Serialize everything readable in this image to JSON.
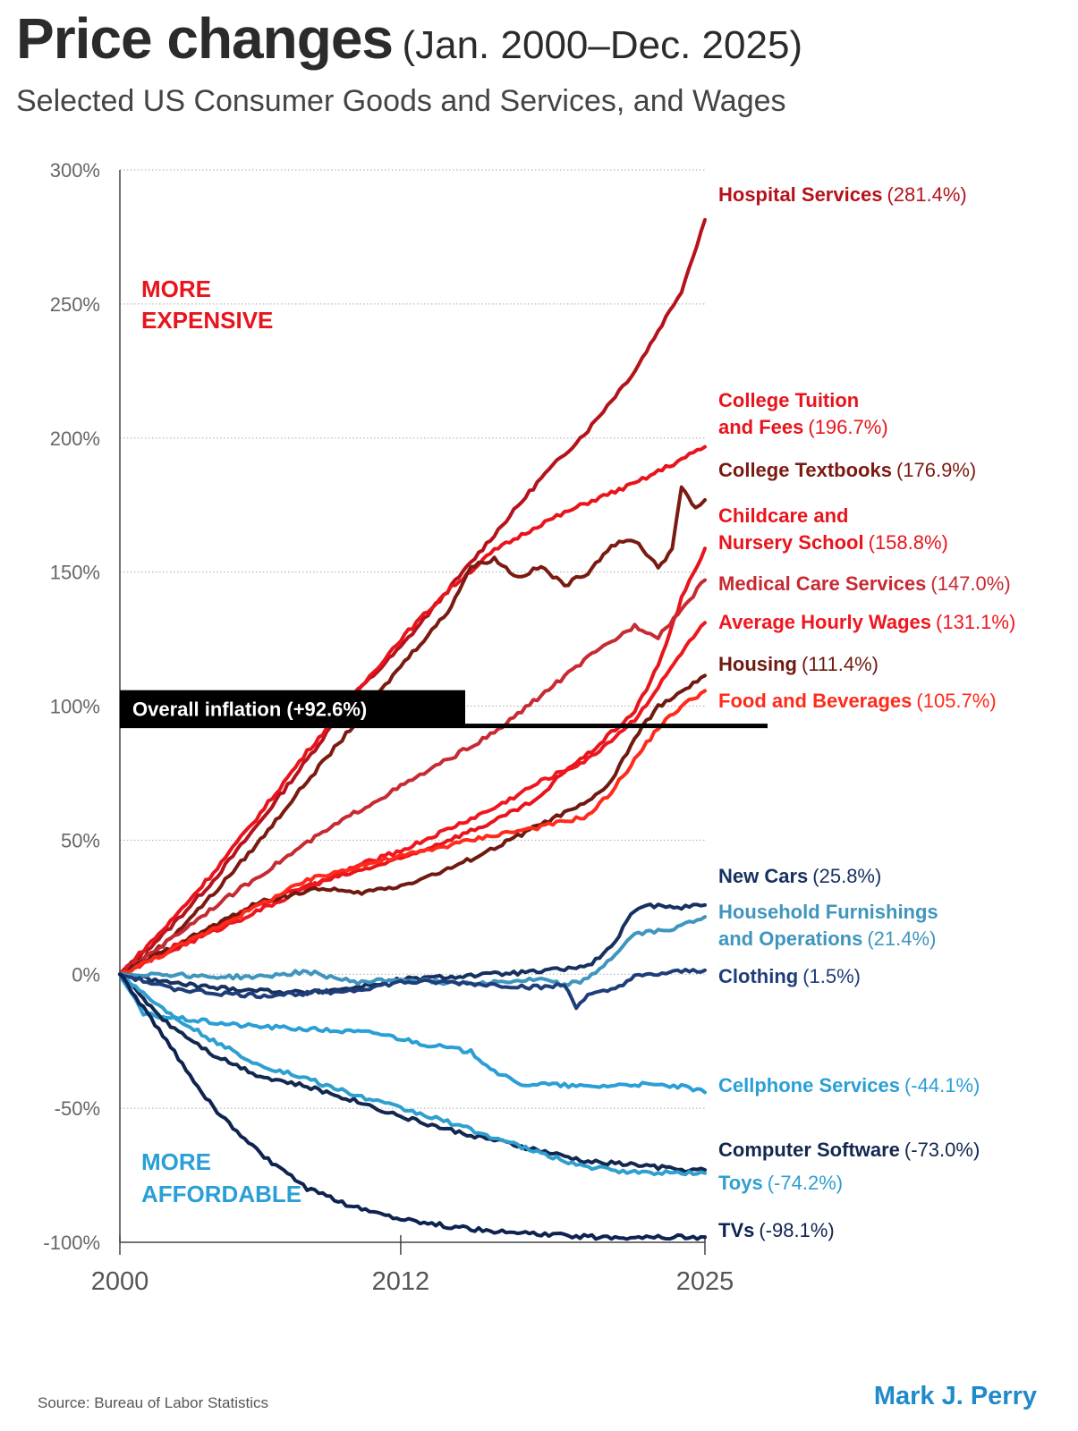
{
  "header": {
    "title": "Price changes",
    "title_range": "(Jan. 2000–Dec. 2025)",
    "subtitle": "Selected US Consumer Goods and Services, and Wages"
  },
  "footer": {
    "source": "Source:  Bureau of Labor Statistics",
    "author": "Mark J. Perry"
  },
  "chart_data": {
    "type": "line",
    "x_ticks": [
      "2000",
      "2012",
      "2025"
    ],
    "xlim": [
      2000,
      2025
    ],
    "ylim": [
      -100,
      300
    ],
    "y_ticks": [
      {
        "value": 300,
        "label": "300%"
      },
      {
        "value": 250,
        "label": "250%"
      },
      {
        "value": 200,
        "label": "200%"
      },
      {
        "value": 150,
        "label": "150%"
      },
      {
        "value": 100,
        "label": "100%"
      },
      {
        "value": 50,
        "label": "50%"
      },
      {
        "value": 0,
        "label": "0%"
      },
      {
        "value": -50,
        "label": "-50%"
      },
      {
        "value": -100,
        "label": "-100%"
      }
    ],
    "grid": "horizontal dotted",
    "region_labels": {
      "expensive": [
        "MORE",
        "EXPENSIVE"
      ],
      "affordable": [
        "MORE",
        "AFFORDABLE"
      ]
    },
    "reference_line": {
      "label": "Overall inflation (+92.6%)",
      "value": 92.6
    },
    "series": [
      {
        "name": "Hospital Services",
        "value_label": "(281.4%)",
        "color": "#b5121b",
        "label_lines": [
          "Hospital Services"
        ],
        "points": [
          [
            2000,
            0
          ],
          [
            2002,
            16
          ],
          [
            2004,
            35
          ],
          [
            2006,
            57
          ],
          [
            2008,
            80
          ],
          [
            2010,
            104
          ],
          [
            2012,
            122
          ],
          [
            2014,
            143
          ],
          [
            2016,
            164
          ],
          [
            2018,
            185
          ],
          [
            2020,
            203
          ],
          [
            2022,
            225
          ],
          [
            2024,
            255
          ],
          [
            2025,
            281.4
          ]
        ]
      },
      {
        "name": "College Tuition and Fees",
        "value_label": "(196.7%)",
        "color": "#e8141c",
        "label_lines": [
          "College Tuition",
          "and Fees"
        ],
        "points": [
          [
            2000,
            0
          ],
          [
            2002,
            18
          ],
          [
            2004,
            38
          ],
          [
            2006,
            60
          ],
          [
            2008,
            83
          ],
          [
            2010,
            104
          ],
          [
            2012,
            125
          ],
          [
            2014,
            143
          ],
          [
            2016,
            158
          ],
          [
            2018,
            168
          ],
          [
            2020,
            176
          ],
          [
            2022,
            183
          ],
          [
            2024,
            192
          ],
          [
            2025,
            196.7
          ]
        ]
      },
      {
        "name": "College Textbooks",
        "value_label": "(176.9%)",
        "color": "#7a1b12",
        "label_lines": [
          "College Textbooks"
        ],
        "points": [
          [
            2000,
            0
          ],
          [
            2002,
            12
          ],
          [
            2004,
            30
          ],
          [
            2006,
            50
          ],
          [
            2008,
            72
          ],
          [
            2010,
            93
          ],
          [
            2012,
            115
          ],
          [
            2014,
            135
          ],
          [
            2015,
            152
          ],
          [
            2016,
            155
          ],
          [
            2017,
            148
          ],
          [
            2018,
            152
          ],
          [
            2019,
            145
          ],
          [
            2020,
            150
          ],
          [
            2021,
            160
          ],
          [
            2022,
            162
          ],
          [
            2023,
            152
          ],
          [
            2023.6,
            158
          ],
          [
            2024,
            182
          ],
          [
            2024.6,
            174
          ],
          [
            2025,
            176.9
          ]
        ]
      },
      {
        "name": "Childcare and Nursery School",
        "value_label": "(158.8%)",
        "color": "#e8141c",
        "label_lines": [
          "Childcare and",
          "Nursery School"
        ],
        "points": [
          [
            2000,
            0
          ],
          [
            2002,
            9
          ],
          [
            2004,
            18
          ],
          [
            2006,
            26
          ],
          [
            2008,
            33
          ],
          [
            2010,
            38
          ],
          [
            2012,
            43
          ],
          [
            2014,
            50
          ],
          [
            2016,
            57
          ],
          [
            2018,
            66
          ],
          [
            2019,
            76
          ],
          [
            2020,
            82
          ],
          [
            2022,
            98
          ],
          [
            2023,
            115
          ],
          [
            2024,
            140
          ],
          [
            2025,
            158.8
          ]
        ]
      },
      {
        "name": "Medical Care Services",
        "value_label": "(147.0%)",
        "color": "#c62a33",
        "label_lines": [
          "Medical Care Services"
        ],
        "points": [
          [
            2000,
            0
          ],
          [
            2002,
            12
          ],
          [
            2004,
            25
          ],
          [
            2006,
            37
          ],
          [
            2008,
            49
          ],
          [
            2010,
            60
          ],
          [
            2012,
            70
          ],
          [
            2014,
            80
          ],
          [
            2016,
            90
          ],
          [
            2018,
            104
          ],
          [
            2020,
            118
          ],
          [
            2022,
            130
          ],
          [
            2023,
            126
          ],
          [
            2024,
            136
          ],
          [
            2025,
            147
          ]
        ]
      },
      {
        "name": "Average Hourly Wages",
        "value_label": "(131.1%)",
        "color": "#f0161f",
        "label_lines": [
          "Average Hourly Wages"
        ],
        "points": [
          [
            2000,
            0
          ],
          [
            2002,
            8
          ],
          [
            2004,
            16
          ],
          [
            2006,
            24
          ],
          [
            2008,
            32
          ],
          [
            2010,
            40
          ],
          [
            2012,
            46
          ],
          [
            2014,
            54
          ],
          [
            2016,
            62
          ],
          [
            2018,
            72
          ],
          [
            2020,
            80
          ],
          [
            2022,
            95
          ],
          [
            2023,
            107
          ],
          [
            2024,
            120
          ],
          [
            2025,
            131.1
          ]
        ]
      },
      {
        "name": "Housing",
        "value_label": "(111.4%)",
        "color": "#6e1a10",
        "label_lines": [
          "Housing"
        ],
        "points": [
          [
            2000,
            0
          ],
          [
            2002,
            9
          ],
          [
            2004,
            18
          ],
          [
            2006,
            27
          ],
          [
            2008,
            31
          ],
          [
            2009,
            32
          ],
          [
            2010,
            30
          ],
          [
            2012,
            33
          ],
          [
            2014,
            39
          ],
          [
            2016,
            47
          ],
          [
            2018,
            56
          ],
          [
            2020,
            64
          ],
          [
            2021,
            72
          ],
          [
            2022,
            88
          ],
          [
            2023,
            100
          ],
          [
            2024,
            105
          ],
          [
            2025,
            111.4
          ]
        ]
      },
      {
        "name": "Food and Beverages",
        "value_label": "(105.7%)",
        "color": "#ff2a1a",
        "label_lines": [
          "Food and Beverages"
        ],
        "points": [
          [
            2000,
            0
          ],
          [
            2002,
            8
          ],
          [
            2004,
            17
          ],
          [
            2006,
            26
          ],
          [
            2008,
            35
          ],
          [
            2010,
            40
          ],
          [
            2012,
            44
          ],
          [
            2014,
            48
          ],
          [
            2016,
            52
          ],
          [
            2018,
            55
          ],
          [
            2020,
            59
          ],
          [
            2021,
            68
          ],
          [
            2022,
            80
          ],
          [
            2023,
            92
          ],
          [
            2024,
            100
          ],
          [
            2025,
            105.7
          ]
        ]
      },
      {
        "name": "New Cars",
        "value_label": "(25.8%)",
        "color": "#16315f",
        "label_lines": [
          "New Cars"
        ],
        "points": [
          [
            2000,
            0
          ],
          [
            2002,
            -3
          ],
          [
            2004,
            -5
          ],
          [
            2006,
            -6
          ],
          [
            2008,
            -7
          ],
          [
            2010,
            -5
          ],
          [
            2012,
            -2
          ],
          [
            2014,
            -1
          ],
          [
            2016,
            0
          ],
          [
            2018,
            1
          ],
          [
            2019,
            2
          ],
          [
            2020,
            3
          ],
          [
            2021,
            10
          ],
          [
            2022,
            24
          ],
          [
            2023,
            26
          ],
          [
            2024,
            25
          ],
          [
            2025,
            25.8
          ]
        ]
      },
      {
        "name": "Household Furnishings and Operations",
        "value_label": "(21.4%)",
        "color": "#3f95bd",
        "label_lines": [
          "Household Furnishings",
          "and Operations"
        ],
        "points": [
          [
            2000,
            0
          ],
          [
            2002,
            0
          ],
          [
            2004,
            -1
          ],
          [
            2006,
            -1
          ],
          [
            2008,
            1
          ],
          [
            2009,
            -1
          ],
          [
            2010,
            -3
          ],
          [
            2012,
            -2
          ],
          [
            2014,
            -3
          ],
          [
            2016,
            -3
          ],
          [
            2018,
            -2
          ],
          [
            2019,
            -4
          ],
          [
            2020,
            -2
          ],
          [
            2021,
            6
          ],
          [
            2022,
            15
          ],
          [
            2023,
            16
          ],
          [
            2024,
            18
          ],
          [
            2025,
            21.4
          ]
        ]
      },
      {
        "name": "Clothing",
        "value_label": "(1.5%)",
        "color": "#1f3d7a",
        "label_lines": [
          "Clothing"
        ],
        "points": [
          [
            2000,
            0
          ],
          [
            2002,
            -5
          ],
          [
            2004,
            -7
          ],
          [
            2006,
            -8
          ],
          [
            2008,
            -7
          ],
          [
            2010,
            -6
          ],
          [
            2012,
            -3
          ],
          [
            2014,
            -3
          ],
          [
            2016,
            -4
          ],
          [
            2018,
            -5
          ],
          [
            2019,
            -4
          ],
          [
            2019.5,
            -12
          ],
          [
            2020,
            -8
          ],
          [
            2021,
            -6
          ],
          [
            2022,
            -1
          ],
          [
            2023,
            0
          ],
          [
            2024,
            1
          ],
          [
            2025,
            1.5
          ]
        ]
      },
      {
        "name": "Cellphone Services",
        "value_label": "(-44.1%)",
        "color": "#2a9fd6",
        "label_lines": [
          "Cellphone Services"
        ],
        "points": [
          [
            2000,
            0
          ],
          [
            2001,
            -15
          ],
          [
            2003,
            -17
          ],
          [
            2005,
            -19
          ],
          [
            2007,
            -20
          ],
          [
            2009,
            -21
          ],
          [
            2011,
            -22
          ],
          [
            2013,
            -26
          ],
          [
            2015,
            -29
          ],
          [
            2016,
            -36
          ],
          [
            2017,
            -41
          ],
          [
            2018,
            -41
          ],
          [
            2020,
            -42
          ],
          [
            2022,
            -41
          ],
          [
            2024,
            -42
          ],
          [
            2025,
            -44.1
          ]
        ]
      },
      {
        "name": "Computer Software",
        "value_label": "(-73.0%)",
        "color": "#13284e",
        "label_lines": [
          "Computer Software"
        ],
        "points": [
          [
            2000,
            0
          ],
          [
            2002,
            -18
          ],
          [
            2004,
            -30
          ],
          [
            2006,
            -38
          ],
          [
            2008,
            -42
          ],
          [
            2010,
            -47
          ],
          [
            2012,
            -53
          ],
          [
            2014,
            -58
          ],
          [
            2016,
            -62
          ],
          [
            2018,
            -66
          ],
          [
            2020,
            -70
          ],
          [
            2022,
            -71
          ],
          [
            2024,
            -73
          ],
          [
            2025,
            -73
          ]
        ]
      },
      {
        "name": "Toys",
        "value_label": "(-74.2%)",
        "color": "#2f9fd0",
        "label_lines": [
          "Toys"
        ],
        "points": [
          [
            2000,
            0
          ],
          [
            2002,
            -14
          ],
          [
            2004,
            -25
          ],
          [
            2006,
            -34
          ],
          [
            2008,
            -39
          ],
          [
            2010,
            -45
          ],
          [
            2012,
            -50
          ],
          [
            2014,
            -55
          ],
          [
            2016,
            -61
          ],
          [
            2018,
            -67
          ],
          [
            2020,
            -72
          ],
          [
            2022,
            -74
          ],
          [
            2024,
            -74
          ],
          [
            2025,
            -74.2
          ]
        ]
      },
      {
        "name": "TVs",
        "value_label": "(-98.1%)",
        "color": "#0e2350",
        "label_lines": [
          "TVs"
        ],
        "points": [
          [
            2000,
            0
          ],
          [
            2002,
            -25
          ],
          [
            2004,
            -50
          ],
          [
            2006,
            -67
          ],
          [
            2008,
            -80
          ],
          [
            2010,
            -87
          ],
          [
            2012,
            -91
          ],
          [
            2014,
            -94
          ],
          [
            2016,
            -96
          ],
          [
            2018,
            -97
          ],
          [
            2020,
            -98
          ],
          [
            2022,
            -98
          ],
          [
            2024,
            -98
          ],
          [
            2025,
            -98.1
          ]
        ]
      }
    ]
  }
}
